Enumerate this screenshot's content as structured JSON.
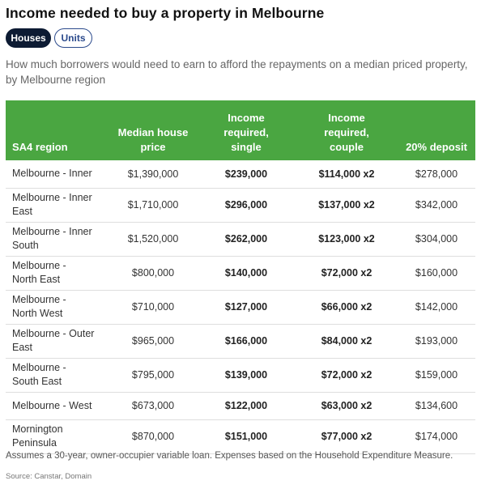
{
  "title": "Income needed to buy a property in Melbourne",
  "toggles": {
    "houses": "Houses",
    "units": "Units"
  },
  "subtitle": "How much borrowers would need to earn to afford the repayments on a median priced property, by Melbourne region",
  "table": {
    "headers": [
      "SA4 region",
      "Median house price",
      "Income required, single",
      "Income required, couple",
      "20% deposit"
    ],
    "rows": [
      [
        "Melbourne - Inner",
        "$1,390,000",
        "$239,000",
        "$114,000 x2",
        "$278,000"
      ],
      [
        "Melbourne - Inner East",
        "$1,710,000",
        "$296,000",
        "$137,000 x2",
        "$342,000"
      ],
      [
        "Melbourne - Inner South",
        "$1,520,000",
        "$262,000",
        "$123,000 x2",
        "$304,000"
      ],
      [
        "Melbourne - North East",
        "$800,000",
        "$140,000",
        "$72,000 x2",
        "$160,000"
      ],
      [
        "Melbourne - North West",
        "$710,000",
        "$127,000",
        "$66,000 x2",
        "$142,000"
      ],
      [
        "Melbourne - Outer East",
        "$965,000",
        "$166,000",
        "$84,000 x2",
        "$193,000"
      ],
      [
        "Melbourne - South East",
        "$795,000",
        "$139,000",
        "$72,000 x2",
        "$159,000"
      ],
      [
        "Melbourne - West",
        "$673,000",
        "$122,000",
        "$63,000 x2",
        "$134,600"
      ],
      [
        "Mornington Peninsula",
        "$870,000",
        "$151,000",
        "$77,000 x2",
        "$174,000"
      ]
    ]
  },
  "footnote": "Assumes a 30-year, owner-occupier variable loan. Expenses based on the Household Expenditure Measure.",
  "source": "Source: Canstar, Domain",
  "colors": {
    "header_green": "#4aa641",
    "active_toggle": "#0d1b33",
    "inactive_toggle_border": "#2b4a8c"
  }
}
